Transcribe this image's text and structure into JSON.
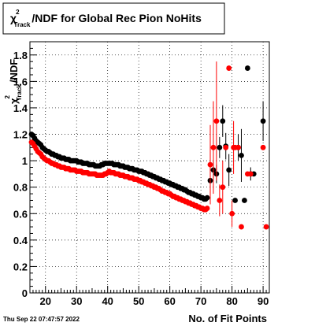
{
  "chart_data": {
    "type": "scatter",
    "title": {
      "symbol": "χ",
      "superscript": "2",
      "subscript": "Track",
      "text": "/NDF for Global Rec Pion NoHits"
    },
    "xlabel": "No. of Fit Points",
    "ylabel": {
      "symbol": "χ",
      "superscript": "2",
      "subscript": "Track",
      "text": "/NDF"
    },
    "xlim": [
      15,
      92
    ],
    "ylim": [
      0,
      1.9
    ],
    "x_ticks": [
      20,
      30,
      40,
      50,
      60,
      70,
      80,
      90
    ],
    "y_ticks": [
      0,
      0.2,
      0.4,
      0.6,
      0.8,
      1,
      1.2,
      1.4,
      1.6,
      1.8
    ],
    "x_tick_labels": [
      "20",
      "30",
      "40",
      "50",
      "60",
      "70",
      "80",
      "90"
    ],
    "y_tick_labels": [
      "0",
      "0.2",
      "0.4",
      "0.6",
      "0.8",
      "1",
      "1.2",
      "1.4",
      "1.6",
      "1.8"
    ],
    "grid": true,
    "timestamp": "Thu Sep 22 07:47:57 2022",
    "series": [
      {
        "color": "#000000",
        "x": [
          15.5,
          16,
          16.5,
          17,
          17.5,
          18,
          18.5,
          19,
          19.5,
          20,
          20.5,
          21,
          21.5,
          22,
          22.5,
          23,
          23.5,
          24,
          24.5,
          25,
          25.5,
          26,
          26.5,
          27,
          27.5,
          28,
          28.5,
          29,
          29.5,
          30,
          30.5,
          31,
          31.5,
          32,
          32.5,
          33,
          33.5,
          34,
          34.5,
          35,
          35.5,
          36,
          36.5,
          37,
          37.5,
          38,
          38.5,
          39,
          39.5,
          40,
          40.5,
          41,
          41.5,
          42,
          42.5,
          43,
          43.5,
          44,
          44.5,
          45,
          45.5,
          46,
          46.5,
          47,
          47.5,
          48,
          48.5,
          49,
          49.5,
          50,
          50.5,
          51,
          51.5,
          52,
          52.5,
          53,
          53.5,
          54,
          54.5,
          55,
          55.5,
          56,
          56.5,
          57,
          57.5,
          58,
          58.5,
          59,
          59.5,
          60,
          60.5,
          61,
          61.5,
          62,
          62.5,
          63,
          63.5,
          64,
          64.5,
          65,
          65.5,
          66,
          66.5,
          67,
          67.5,
          68,
          68.5,
          69,
          69.5,
          70,
          70.5,
          71,
          71.5,
          72,
          73,
          74,
          75,
          76,
          77,
          78,
          79,
          81,
          82,
          83,
          84,
          85,
          86,
          87,
          90
        ],
        "y": [
          1.2,
          1.19,
          1.17,
          1.15,
          1.14,
          1.13,
          1.12,
          1.1,
          1.09,
          1.08,
          1.07,
          1.07,
          1.06,
          1.05,
          1.05,
          1.04,
          1.04,
          1.03,
          1.03,
          1.02,
          1.02,
          1.02,
          1.01,
          1.01,
          1.01,
          1.0,
          1.0,
          1.0,
          1.0,
          1.0,
          0.99,
          0.99,
          0.99,
          0.98,
          0.98,
          0.98,
          0.98,
          0.97,
          0.97,
          0.97,
          0.97,
          0.96,
          0.96,
          0.96,
          0.96,
          0.97,
          0.97,
          0.98,
          0.98,
          0.98,
          0.98,
          0.98,
          0.98,
          0.97,
          0.97,
          0.97,
          0.97,
          0.96,
          0.96,
          0.96,
          0.95,
          0.95,
          0.95,
          0.94,
          0.94,
          0.94,
          0.93,
          0.93,
          0.93,
          0.92,
          0.92,
          0.92,
          0.91,
          0.91,
          0.9,
          0.9,
          0.89,
          0.89,
          0.88,
          0.88,
          0.87,
          0.87,
          0.86,
          0.86,
          0.85,
          0.85,
          0.84,
          0.84,
          0.83,
          0.83,
          0.82,
          0.82,
          0.81,
          0.81,
          0.8,
          0.8,
          0.79,
          0.79,
          0.78,
          0.78,
          0.77,
          0.76,
          0.76,
          0.75,
          0.75,
          0.74,
          0.74,
          0.73,
          0.73,
          0.72,
          0.72,
          0.71,
          0.71,
          0.72,
          0.85,
          0.93,
          0.9,
          1.1,
          1.3,
          1.11,
          0.93,
          0.7,
          1.1,
          1.04,
          0.7,
          1.7,
          0.9,
          0.9,
          1.3
        ],
        "err": [
          0,
          0,
          0,
          0,
          0,
          0,
          0,
          0,
          0,
          0,
          0,
          0,
          0,
          0,
          0,
          0,
          0,
          0,
          0,
          0,
          0,
          0,
          0,
          0,
          0,
          0,
          0,
          0,
          0,
          0,
          0,
          0,
          0,
          0,
          0,
          0,
          0,
          0,
          0,
          0,
          0,
          0,
          0,
          0,
          0,
          0,
          0,
          0,
          0,
          0,
          0,
          0,
          0,
          0,
          0,
          0,
          0,
          0,
          0,
          0,
          0,
          0,
          0,
          0,
          0,
          0,
          0,
          0,
          0,
          0,
          0,
          0,
          0,
          0,
          0,
          0,
          0,
          0,
          0,
          0,
          0,
          0,
          0,
          0,
          0,
          0,
          0,
          0,
          0,
          0,
          0,
          0,
          0,
          0,
          0,
          0,
          0,
          0,
          0,
          0,
          0,
          0,
          0,
          0,
          0,
          0,
          0,
          0,
          0,
          0,
          0,
          0,
          0,
          0,
          0.04,
          0.06,
          0.07,
          0.08,
          0.12,
          0.1,
          0.12,
          0.0,
          0.1,
          0.2,
          0.0,
          0.0,
          0.05,
          0.0,
          0.15
        ]
      },
      {
        "color": "#ff0000",
        "x": [
          15.5,
          16,
          16.5,
          17,
          17.5,
          18,
          18.5,
          19,
          19.5,
          20,
          20.5,
          21,
          21.5,
          22,
          22.5,
          23,
          23.5,
          24,
          24.5,
          25,
          25.5,
          26,
          26.5,
          27,
          27.5,
          28,
          28.5,
          29,
          29.5,
          30,
          30.5,
          31,
          31.5,
          32,
          32.5,
          33,
          33.5,
          34,
          34.5,
          35,
          35.5,
          36,
          36.5,
          37,
          37.5,
          38,
          38.5,
          39,
          39.5,
          40,
          40.5,
          41,
          41.5,
          42,
          42.5,
          43,
          43.5,
          44,
          44.5,
          45,
          45.5,
          46,
          46.5,
          47,
          47.5,
          48,
          48.5,
          49,
          49.5,
          50,
          50.5,
          51,
          51.5,
          52,
          52.5,
          53,
          53.5,
          54,
          54.5,
          55,
          55.5,
          56,
          56.5,
          57,
          57.5,
          58,
          58.5,
          59,
          59.5,
          60,
          60.5,
          61,
          61.5,
          62,
          62.5,
          63,
          63.5,
          64,
          64.5,
          65,
          65.5,
          66,
          66.5,
          67,
          67.5,
          68,
          68.5,
          69,
          69.5,
          70,
          70.5,
          71,
          71.5,
          72,
          73,
          74,
          75,
          76,
          77,
          78,
          79,
          80,
          80.5,
          81,
          82,
          83,
          85,
          86,
          90,
          91
        ],
        "y": [
          1.14,
          1.13,
          1.11,
          1.09,
          1.07,
          1.06,
          1.05,
          1.03,
          1.02,
          1.01,
          1.0,
          1.0,
          0.99,
          0.98,
          0.98,
          0.97,
          0.97,
          0.96,
          0.96,
          0.95,
          0.95,
          0.95,
          0.94,
          0.94,
          0.94,
          0.93,
          0.93,
          0.93,
          0.93,
          0.92,
          0.92,
          0.92,
          0.92,
          0.91,
          0.91,
          0.91,
          0.91,
          0.9,
          0.9,
          0.9,
          0.9,
          0.9,
          0.89,
          0.89,
          0.89,
          0.89,
          0.89,
          0.9,
          0.9,
          0.91,
          0.92,
          0.91,
          0.91,
          0.91,
          0.9,
          0.9,
          0.9,
          0.89,
          0.89,
          0.89,
          0.88,
          0.88,
          0.88,
          0.87,
          0.87,
          0.87,
          0.86,
          0.86,
          0.86,
          0.85,
          0.85,
          0.84,
          0.84,
          0.83,
          0.83,
          0.82,
          0.82,
          0.81,
          0.81,
          0.8,
          0.8,
          0.79,
          0.79,
          0.78,
          0.77,
          0.77,
          0.76,
          0.76,
          0.75,
          0.75,
          0.74,
          0.73,
          0.73,
          0.72,
          0.72,
          0.71,
          0.71,
          0.7,
          0.7,
          0.69,
          0.69,
          0.68,
          0.68,
          0.67,
          0.67,
          0.66,
          0.66,
          0.65,
          0.65,
          0.64,
          0.64,
          0.63,
          0.63,
          0.64,
          0.97,
          1.1,
          1.3,
          0.7,
          0.8,
          1.1,
          1.7,
          0.6,
          1.1,
          1.1,
          1.1,
          0.5,
          0.9,
          0.9,
          1.1,
          0.5
        ],
        "err": [
          0,
          0,
          0,
          0,
          0,
          0,
          0,
          0,
          0,
          0,
          0,
          0,
          0,
          0,
          0,
          0,
          0,
          0,
          0,
          0,
          0,
          0,
          0,
          0,
          0,
          0,
          0,
          0,
          0,
          0,
          0,
          0,
          0,
          0,
          0,
          0,
          0,
          0,
          0,
          0,
          0,
          0,
          0,
          0,
          0,
          0,
          0,
          0,
          0,
          0,
          0,
          0,
          0,
          0,
          0,
          0,
          0,
          0,
          0,
          0,
          0,
          0,
          0,
          0,
          0,
          0,
          0,
          0,
          0,
          0,
          0,
          0,
          0,
          0,
          0,
          0,
          0,
          0,
          0,
          0,
          0,
          0,
          0,
          0,
          0,
          0,
          0,
          0,
          0,
          0,
          0,
          0,
          0,
          0,
          0,
          0,
          0,
          0,
          0,
          0,
          0,
          0,
          0,
          0,
          0,
          0,
          0,
          0,
          0,
          0,
          0,
          0,
          0,
          0,
          0.3,
          0.35,
          0.45,
          0.12,
          0.2,
          0.0,
          0.0,
          0.1,
          0.2,
          0.0,
          0.0,
          0.0,
          0.0,
          0.0,
          0.0,
          0.0
        ]
      }
    ]
  }
}
